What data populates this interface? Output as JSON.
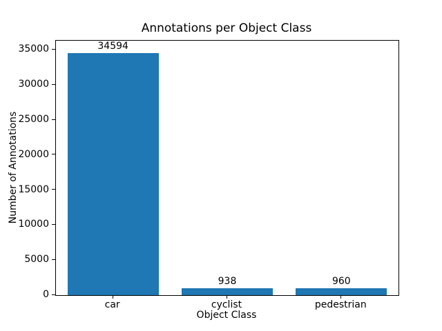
{
  "figure": {
    "background_color": "#ffffff",
    "text_color": "#000000"
  },
  "chart_data": {
    "type": "bar",
    "title": "Annotations per Object Class",
    "xlabel": "Object Class",
    "ylabel": "Number of Annotations",
    "categories": [
      "car",
      "cyclist",
      "pedestrian"
    ],
    "values": [
      34594,
      938,
      960
    ],
    "bar_value_labels": [
      "34594",
      "938",
      "960"
    ],
    "bar_color": "#1f77b4",
    "ylim": [
      0,
      36324
    ],
    "yticks": [
      0,
      5000,
      10000,
      15000,
      20000,
      25000,
      30000,
      35000
    ],
    "ytick_labels": [
      "0",
      "5000",
      "10000",
      "15000",
      "20000",
      "25000",
      "30000",
      "35000"
    ],
    "bar_width_fraction": 0.8,
    "grid": false,
    "legend_position": "none"
  }
}
